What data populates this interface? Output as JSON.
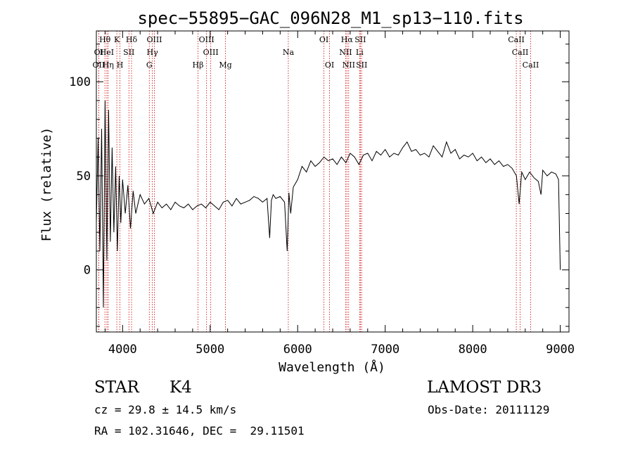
{
  "title": "spec−55895−GAC_096N28_M1_sp13−110.fits",
  "chart_data": {
    "type": "line",
    "title": "spec−55895−GAC_096N28_M1_sp13−110.fits",
    "xlabel": "Wavelength (Å)",
    "ylabel": "Flux (relative)",
    "xlim": [
      3700,
      9100
    ],
    "ylim": [
      -33,
      127
    ],
    "x_ticks": [
      4000,
      5000,
      6000,
      7000,
      8000,
      9000
    ],
    "y_ticks": [
      0,
      50,
      100
    ],
    "grid": false,
    "series": [
      {
        "x": [
          3700,
          3720,
          3740,
          3760,
          3780,
          3800,
          3820,
          3840,
          3860,
          3880,
          3900,
          3920,
          3940,
          3960,
          3980,
          4000,
          4030,
          4060,
          4090,
          4120,
          4150,
          4200,
          4250,
          4300,
          4350,
          4400,
          4450,
          4500,
          4550,
          4600,
          4650,
          4700,
          4750,
          4800,
          4850,
          4900,
          4950,
          5000,
          5050,
          5100,
          5150,
          5200,
          5250,
          5300,
          5350,
          5400,
          5450,
          5500,
          5550,
          5600,
          5650,
          5680,
          5700,
          5720,
          5750,
          5800,
          5850,
          5880,
          5900,
          5920,
          5950,
          6000,
          6050,
          6100,
          6150,
          6200,
          6250,
          6300,
          6350,
          6400,
          6450,
          6500,
          6550,
          6600,
          6650,
          6700,
          6750,
          6800,
          6850,
          6900,
          6950,
          7000,
          7050,
          7100,
          7150,
          7200,
          7250,
          7300,
          7350,
          7400,
          7450,
          7500,
          7550,
          7600,
          7650,
          7700,
          7750,
          7800,
          7850,
          7900,
          7950,
          8000,
          8050,
          8100,
          8150,
          8200,
          8250,
          8300,
          8350,
          8400,
          8450,
          8500,
          8530,
          8560,
          8600,
          8650,
          8700,
          8750,
          8780,
          8800,
          8850,
          8900,
          8950,
          8980,
          9000
        ],
        "y": [
          25,
          70,
          10,
          75,
          -20,
          90,
          5,
          85,
          15,
          65,
          20,
          55,
          10,
          50,
          25,
          48,
          30,
          45,
          22,
          42,
          30,
          40,
          35,
          38,
          30,
          36,
          33,
          35,
          32,
          36,
          34,
          33,
          35,
          32,
          34,
          35,
          33,
          36,
          34,
          32,
          36,
          37,
          34,
          38,
          35,
          36,
          37,
          39,
          38,
          36,
          38,
          17,
          37,
          40,
          38,
          39,
          36,
          10,
          41,
          30,
          44,
          48,
          55,
          52,
          58,
          55,
          57,
          60,
          58,
          59,
          56,
          60,
          57,
          62,
          60,
          56,
          61,
          62,
          58,
          63,
          61,
          64,
          60,
          62,
          61,
          65,
          68,
          63,
          64,
          61,
          62,
          60,
          66,
          63,
          60,
          68,
          62,
          64,
          59,
          61,
          60,
          62,
          58,
          60,
          57,
          59,
          56,
          58,
          55,
          56,
          54,
          50,
          35,
          52,
          48,
          52,
          49,
          47,
          40,
          53,
          50,
          52,
          51,
          48,
          0
        ]
      }
    ],
    "line_markers": [
      {
        "label": "Hθ",
        "x": 3798,
        "row": 0
      },
      {
        "label": "K",
        "x": 3934,
        "row": 0
      },
      {
        "label": "Hδ",
        "x": 4102,
        "row": 0
      },
      {
        "label": "OIII",
        "x": 4363,
        "row": 0
      },
      {
        "label": "OIII",
        "x": 4959,
        "row": 0
      },
      {
        "label": "OI",
        "x": 6300,
        "row": 0
      },
      {
        "label": "Hα",
        "x": 6563,
        "row": 0
      },
      {
        "label": "SII",
        "x": 6716,
        "row": 0
      },
      {
        "label": "CaII",
        "x": 8498,
        "row": 0
      },
      {
        "label": "OI",
        "x": 3727,
        "row": 1
      },
      {
        "label": "HeI",
        "x": 3820,
        "row": 1
      },
      {
        "label": "SII",
        "x": 4072,
        "row": 1
      },
      {
        "label": "Hγ",
        "x": 4340,
        "row": 1
      },
      {
        "label": "OIII",
        "x": 5007,
        "row": 1
      },
      {
        "label": "Na",
        "x": 5893,
        "row": 1
      },
      {
        "label": "NII",
        "x": 6548,
        "row": 1
      },
      {
        "label": "Li",
        "x": 6708,
        "row": 1
      },
      {
        "label": "CaII",
        "x": 8542,
        "row": 1
      },
      {
        "label": "OII",
        "x": 3727,
        "row": 2
      },
      {
        "label": "Hη",
        "x": 3835,
        "row": 2
      },
      {
        "label": "H",
        "x": 3970,
        "row": 2
      },
      {
        "label": "G",
        "x": 4305,
        "row": 2
      },
      {
        "label": "Hβ",
        "x": 4861,
        "row": 2
      },
      {
        "label": "Mg",
        "x": 5175,
        "row": 2
      },
      {
        "label": "OI",
        "x": 6364,
        "row": 2
      },
      {
        "label": "NII",
        "x": 6583,
        "row": 2
      },
      {
        "label": "SII",
        "x": 6731,
        "row": 2
      },
      {
        "label": "CaII",
        "x": 8662,
        "row": 2
      }
    ],
    "marker_color": "#cc0000"
  },
  "info": {
    "object_class": "STAR",
    "subclass": "K4",
    "survey": "LAMOST DR3",
    "cz": "cz = 29.8 ± 14.5 km/s",
    "obs_date": "Obs-Date: 20111129",
    "coords": "RA = 102.31646, DEC =  29.11501"
  }
}
